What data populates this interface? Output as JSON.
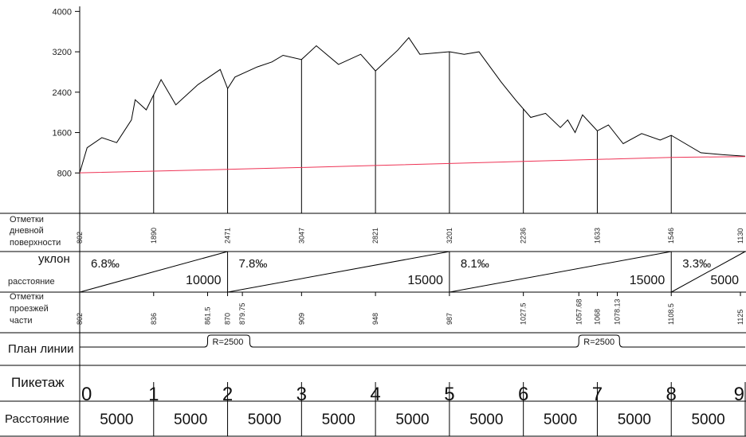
{
  "chart_data": {
    "type": "line",
    "ylim": [
      0,
      4100
    ],
    "xlim": [
      0,
      9
    ],
    "yticks": [
      800,
      1600,
      2400,
      3200,
      4000
    ],
    "ground_profile": {
      "color": "#000000",
      "points": [
        [
          0,
          802
        ],
        [
          0.1,
          1300
        ],
        [
          0.3,
          1500
        ],
        [
          0.5,
          1400
        ],
        [
          0.7,
          1850
        ],
        [
          0.75,
          2250
        ],
        [
          0.9,
          2050
        ],
        [
          1.1,
          2650
        ],
        [
          1.3,
          2150
        ],
        [
          1.6,
          2550
        ],
        [
          1.9,
          2850
        ],
        [
          2.0,
          2471
        ],
        [
          2.1,
          2700
        ],
        [
          2.4,
          2900
        ],
        [
          2.6,
          3000
        ],
        [
          2.75,
          3130
        ],
        [
          3.0,
          3047
        ],
        [
          3.2,
          3320
        ],
        [
          3.5,
          2950
        ],
        [
          3.8,
          3150
        ],
        [
          4.0,
          2821
        ],
        [
          4.3,
          3230
        ],
        [
          4.45,
          3480
        ],
        [
          4.6,
          3150
        ],
        [
          5.0,
          3201
        ],
        [
          5.2,
          3150
        ],
        [
          5.4,
          3200
        ],
        [
          5.7,
          2600
        ],
        [
          5.9,
          2236
        ],
        [
          6.1,
          1900
        ],
        [
          6.3,
          1980
        ],
        [
          6.5,
          1700
        ],
        [
          6.6,
          1850
        ],
        [
          6.7,
          1600
        ],
        [
          6.8,
          1950
        ],
        [
          7.0,
          1633
        ],
        [
          7.15,
          1750
        ],
        [
          7.35,
          1380
        ],
        [
          7.6,
          1580
        ],
        [
          7.85,
          1450
        ],
        [
          8.0,
          1546
        ],
        [
          8.4,
          1200
        ],
        [
          8.7,
          1160
        ],
        [
          9.0,
          1130
        ]
      ]
    },
    "design_line": {
      "color": "#ee3355",
      "points": [
        [
          0,
          802
        ],
        [
          1,
          836
        ],
        [
          1.73,
          861.5
        ],
        [
          2,
          870
        ],
        [
          2.2,
          879.75
        ],
        [
          3,
          909
        ],
        [
          4,
          948
        ],
        [
          5,
          987
        ],
        [
          6,
          1027.5
        ],
        [
          6.75,
          1057.68
        ],
        [
          7,
          1068
        ],
        [
          7.27,
          1078.13
        ],
        [
          8,
          1108.5
        ],
        [
          9,
          1125
        ]
      ]
    }
  },
  "rows": {
    "ground": {
      "label_lines": [
        "Отметки",
        "дневной",
        "поверхности"
      ],
      "values": [
        {
          "x": 0,
          "v": "802"
        },
        {
          "x": 1,
          "v": "1890"
        },
        {
          "x": 2,
          "v": "2471"
        },
        {
          "x": 3,
          "v": "3047"
        },
        {
          "x": 4,
          "v": "2821"
        },
        {
          "x": 5,
          "v": "3201"
        },
        {
          "x": 6,
          "v": "2236"
        },
        {
          "x": 7,
          "v": "1633"
        },
        {
          "x": 8,
          "v": "1546"
        },
        {
          "x": 9,
          "v": "1130"
        }
      ]
    },
    "slope": {
      "label_top": "уклон",
      "label_bottom": "расстояние",
      "segments": [
        {
          "from": 0,
          "to": 2,
          "grade": "6.8‰",
          "length": "10000"
        },
        {
          "from": 2,
          "to": 5,
          "grade": "7.8‰",
          "length": "15000"
        },
        {
          "from": 5,
          "to": 8,
          "grade": "8.1‰",
          "length": "15000"
        },
        {
          "from": 8,
          "to": 9,
          "grade": "3.3‰",
          "length": "5000"
        }
      ]
    },
    "road": {
      "label_lines": [
        "Отметки",
        "проезжей",
        "части"
      ],
      "values": [
        {
          "x": 0,
          "v": "802"
        },
        {
          "x": 1,
          "v": "836"
        },
        {
          "x": 1.73,
          "v": "861.5"
        },
        {
          "x": 2,
          "v": "870"
        },
        {
          "x": 2.2,
          "v": "879.75"
        },
        {
          "x": 3,
          "v": "909"
        },
        {
          "x": 4,
          "v": "948"
        },
        {
          "x": 5,
          "v": "987"
        },
        {
          "x": 6,
          "v": "1027.5"
        },
        {
          "x": 6.75,
          "v": "1057.68"
        },
        {
          "x": 7,
          "v": "1068"
        },
        {
          "x": 7.27,
          "v": "1078.13"
        },
        {
          "x": 8,
          "v": "1108.5"
        },
        {
          "x": 9,
          "v": "1125"
        }
      ]
    },
    "plan": {
      "label": "План линии",
      "curves": [
        {
          "from": 1.73,
          "to": 2.3,
          "label": "R=2500"
        },
        {
          "from": 6.75,
          "to": 7.3,
          "label": "R=2500"
        }
      ]
    },
    "picket": {
      "label": "Пикетаж",
      "numbers": [
        "0",
        "1",
        "2",
        "3",
        "4",
        "5",
        "6",
        "7",
        "8",
        "9"
      ]
    },
    "distance": {
      "label": "Расстояние",
      "values": [
        "5000",
        "5000",
        "5000",
        "5000",
        "5000",
        "5000",
        "5000",
        "5000",
        "5000"
      ]
    }
  }
}
